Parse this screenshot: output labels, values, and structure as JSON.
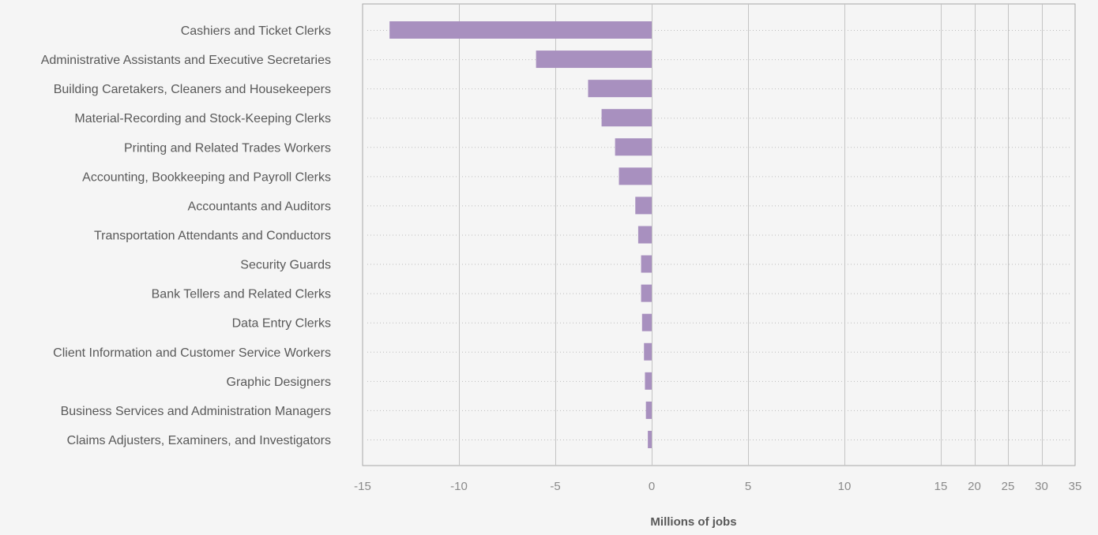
{
  "chart_data": {
    "type": "bar",
    "orientation": "horizontal",
    "title": "",
    "xlabel": "Millions of jobs",
    "ylabel": "",
    "categories": [
      "Cashiers and Ticket Clerks",
      "Administrative Assistants and Executive Secretaries",
      "Building Caretakers, Cleaners and Housekeepers",
      "Material-Recording and Stock-Keeping Clerks",
      "Printing and Related Trades Workers",
      "Accounting, Bookkeeping and Payroll Clerks",
      "Accountants and Auditors",
      "Transportation Attendants and Conductors",
      "Security Guards",
      "Bank Tellers and Related Clerks",
      "Data Entry Clerks",
      "Client Information and Customer Service Workers",
      "Graphic Designers",
      "Business Services and Administration Managers",
      "Claims Adjusters, Examiners, and Investigators"
    ],
    "values": [
      -13.6,
      -6.0,
      -3.3,
      -2.6,
      -1.9,
      -1.7,
      -0.85,
      -0.7,
      -0.55,
      -0.55,
      -0.5,
      -0.4,
      -0.35,
      -0.3,
      -0.2
    ],
    "xticks": [
      -15,
      -10,
      -5,
      0,
      5,
      10,
      15,
      20,
      25,
      30,
      35
    ],
    "xlim": [
      -15,
      35
    ],
    "scale_note": "broken scale: linear from -15 to 15, compressed beyond 15",
    "grid": true,
    "colors": {
      "bar": "#a890bf",
      "background": "#f5f5f5",
      "gridline": "#c4c4c4",
      "dotted_guide": "#bdbdbd",
      "frame": "#a8a8a8",
      "label_text": "#595959",
      "tick_text": "#8a8a8a"
    }
  }
}
